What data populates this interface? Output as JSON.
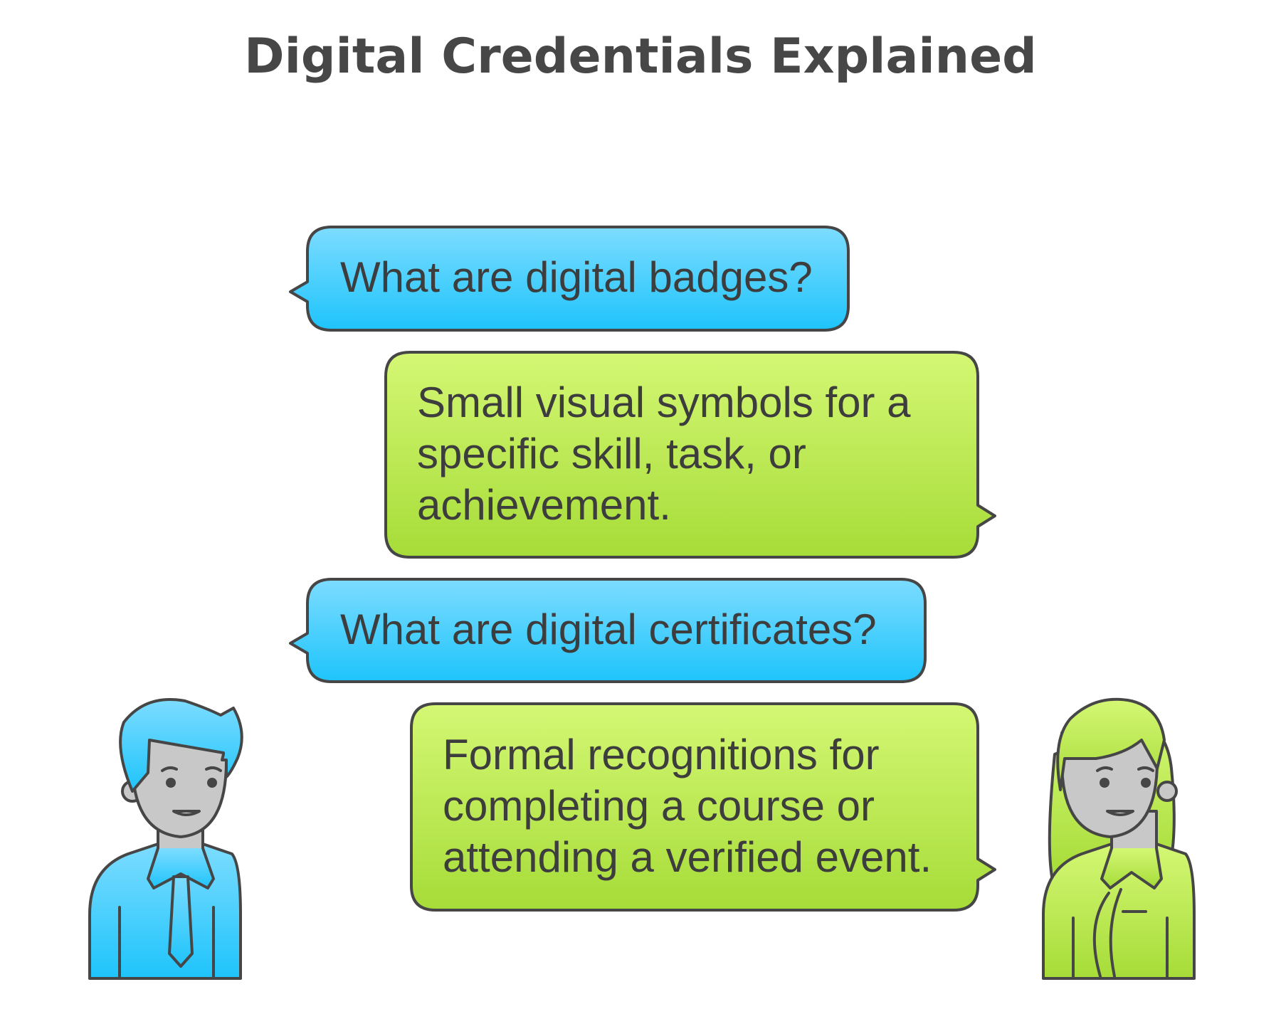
{
  "title": "Digital Credentials Explained",
  "messages": [
    {
      "speaker": "man",
      "text": "What are digital badges?"
    },
    {
      "speaker": "woman",
      "text": "Small visual symbols for a\nspecific skill, task, or\nachievement."
    },
    {
      "speaker": "man",
      "text": "What are digital certificates?"
    },
    {
      "speaker": "woman",
      "text": "Formal recognitions for\ncompleting a course or\nattending a verified event."
    }
  ],
  "colors": {
    "question_top": "#7ddcff",
    "question_bottom": "#1ec4fb",
    "answer_top": "#d4f774",
    "answer_bottom": "#a6dc38",
    "outline": "#464646",
    "skin": "#c8c8c8"
  },
  "people": {
    "left": "man-icon",
    "right": "woman-icon"
  }
}
